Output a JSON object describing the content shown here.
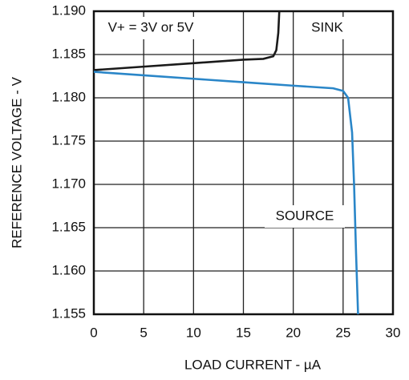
{
  "chart_data": {
    "type": "line",
    "xlabel": "LOAD CURRENT - µA",
    "ylabel": "REFERENCE VOLTAGE - V",
    "annotations": [
      "V+ = 3V or 5V",
      "SINK",
      "SOURCE"
    ],
    "xlim": [
      0,
      30
    ],
    "xticks": [
      0,
      5,
      10,
      15,
      20,
      25,
      30
    ],
    "ylim": [
      1.155,
      1.19
    ],
    "yticks": [
      {
        "value": 1.155,
        "label": "1.155"
      },
      {
        "value": 1.16,
        "label": "1.160"
      },
      {
        "value": 1.165,
        "label": "1.165"
      },
      {
        "value": 1.17,
        "label": "1.170"
      },
      {
        "value": 1.175,
        "label": "1.175"
      },
      {
        "value": 1.18,
        "label": "1.180"
      },
      {
        "value": 1.185,
        "label": "1.185"
      },
      {
        "value": 1.19,
        "label": "1.190"
      }
    ],
    "grid": true,
    "series": [
      {
        "name": "SINK",
        "color": "#1a1a1a",
        "x": [
          0,
          5,
          10,
          15,
          17,
          18,
          18.3,
          18.5,
          18.6
        ],
        "values": [
          1.1832,
          1.1836,
          1.184,
          1.1844,
          1.1845,
          1.1848,
          1.1855,
          1.1875,
          1.19
        ]
      },
      {
        "name": "SOURCE",
        "color": "#2a86c8",
        "x": [
          0,
          5,
          10,
          15,
          20,
          24,
          25,
          25.5,
          25.9,
          26.1,
          26.3,
          26.5
        ],
        "values": [
          1.183,
          1.1826,
          1.1822,
          1.1818,
          1.1814,
          1.1811,
          1.1808,
          1.18,
          1.176,
          1.17,
          1.162,
          1.155
        ]
      }
    ]
  }
}
